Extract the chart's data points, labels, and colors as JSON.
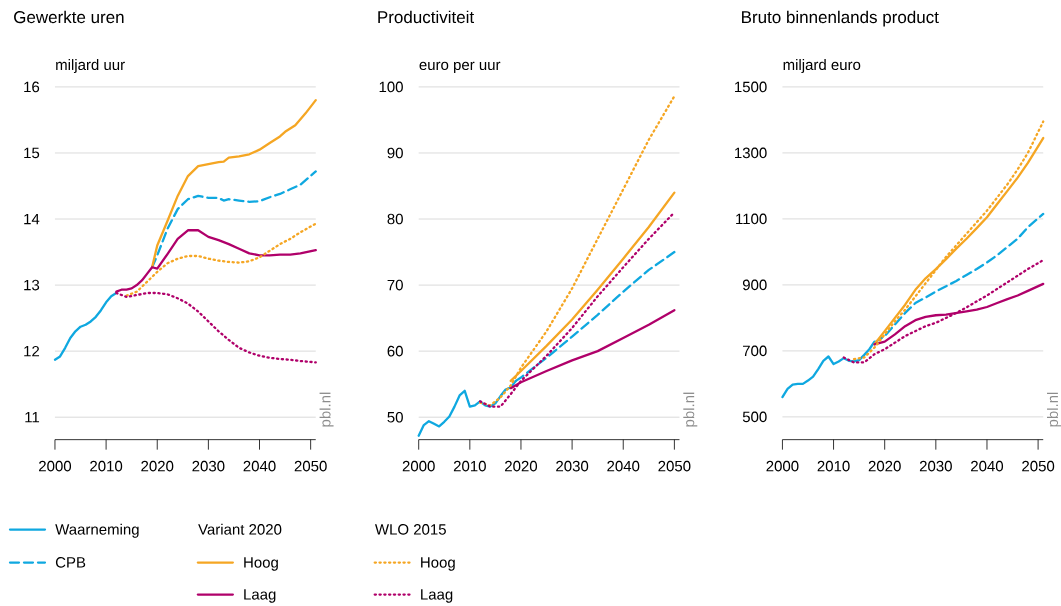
{
  "chart_data": [
    {
      "type": "line",
      "title": "Gewerkte uren",
      "ylabel": "miljard uur",
      "xlim": [
        2000,
        2051
      ],
      "ylim": [
        10.66,
        16
      ],
      "xticks": [
        2000,
        2010,
        2020,
        2030,
        2040,
        2050
      ],
      "yticks": [
        11,
        12,
        13,
        14,
        15,
        16
      ],
      "grid": "y",
      "legend": "bottom",
      "annotations": [
        "pbl.nl",
        "Variant 2020",
        "WLO 2015"
      ],
      "series": [
        {
          "name": "Waarneming",
          "color": "#0fa8e0",
          "line_style": "solid",
          "x": [
            2000,
            2001,
            2002,
            2003,
            2004,
            2005,
            2006,
            2007,
            2008,
            2009,
            2010,
            2011,
            2012
          ],
          "values": [
            11.87,
            11.92,
            12.05,
            12.2,
            12.3,
            12.37,
            12.4,
            12.45,
            12.52,
            12.62,
            12.74,
            12.83,
            12.88
          ]
        },
        {
          "name": "CPB",
          "color": "#0fa8e0",
          "line_style": "dashed",
          "x": [
            2019,
            2020,
            2022,
            2024,
            2026,
            2028,
            2030,
            2032,
            2033,
            2034,
            2036,
            2038,
            2040,
            2042,
            2044,
            2046,
            2048,
            2051
          ],
          "values": [
            13.27,
            13.45,
            13.85,
            14.15,
            14.3,
            14.35,
            14.32,
            14.32,
            14.28,
            14.3,
            14.28,
            14.26,
            14.27,
            14.33,
            14.38,
            14.45,
            14.52,
            14.72
          ]
        },
        {
          "name": "Hoog",
          "color": "#f5a623",
          "line_style": "solid",
          "x": [
            2019,
            2020,
            2022,
            2024,
            2026,
            2028,
            2030,
            2032,
            2033,
            2034,
            2036,
            2038,
            2040,
            2042,
            2044,
            2045,
            2047,
            2049,
            2051
          ],
          "values": [
            13.27,
            13.6,
            13.97,
            14.35,
            14.65,
            14.8,
            14.83,
            14.86,
            14.87,
            14.93,
            14.95,
            14.98,
            15.05,
            15.15,
            15.25,
            15.32,
            15.42,
            15.6,
            15.8
          ]
        },
        {
          "name": "Laag",
          "color": "#b0006a",
          "line_style": "solid",
          "x": [
            2012,
            2013,
            2014,
            2015,
            2016,
            2017,
            2018,
            2019,
            2020,
            2022,
            2024,
            2026,
            2028,
            2030,
            2032,
            2034,
            2036,
            2038,
            2040,
            2042,
            2044,
            2046,
            2048,
            2051
          ],
          "values": [
            12.9,
            12.93,
            12.93,
            12.95,
            13.0,
            13.07,
            13.17,
            13.27,
            13.25,
            13.47,
            13.7,
            13.83,
            13.83,
            13.73,
            13.68,
            13.62,
            13.55,
            13.48,
            13.45,
            13.45,
            13.46,
            13.46,
            13.48,
            13.53
          ]
        },
        {
          "name": "Hoog",
          "color": "#f5a623",
          "line_style": "dotted",
          "x": [
            2014,
            2016,
            2018,
            2020,
            2022,
            2024,
            2026,
            2028,
            2030,
            2032,
            2034,
            2036,
            2038,
            2040,
            2042,
            2044,
            2046,
            2048,
            2051
          ],
          "values": [
            12.84,
            12.9,
            13.05,
            13.2,
            13.33,
            13.4,
            13.44,
            13.44,
            13.4,
            13.37,
            13.35,
            13.34,
            13.36,
            13.42,
            13.52,
            13.62,
            13.7,
            13.8,
            13.93
          ]
        },
        {
          "name": "Laag",
          "color": "#b0006a",
          "line_style": "dotted",
          "x": [
            2012,
            2014,
            2016,
            2018,
            2020,
            2022,
            2024,
            2026,
            2028,
            2030,
            2032,
            2034,
            2036,
            2038,
            2040,
            2042,
            2044,
            2046,
            2048,
            2051
          ],
          "values": [
            12.88,
            12.82,
            12.85,
            12.88,
            12.88,
            12.86,
            12.8,
            12.72,
            12.6,
            12.45,
            12.3,
            12.17,
            12.05,
            11.98,
            11.93,
            11.9,
            11.88,
            11.87,
            11.85,
            11.83
          ]
        }
      ]
    },
    {
      "type": "line",
      "title": "Productiviteit",
      "ylabel": "euro per uur",
      "xlim": [
        2000,
        2051
      ],
      "ylim": [
        46.6,
        100
      ],
      "xticks": [
        2000,
        2010,
        2020,
        2030,
        2040,
        2050
      ],
      "yticks": [
        50,
        60,
        70,
        80,
        90,
        100
      ],
      "grid": "y",
      "annotations": [
        "pbl.nl"
      ],
      "series": [
        {
          "color": "#0fa8e0",
          "line_style": "solid",
          "x": [
            2000,
            2001,
            2002,
            2003,
            2004,
            2005,
            2006,
            2007,
            2008,
            2009,
            2010,
            2011,
            2012,
            2013,
            2014,
            2015,
            2016,
            2017,
            2018,
            2019
          ],
          "values": [
            47.2,
            48.8,
            49.4,
            49.0,
            48.6,
            49.3,
            50.1,
            51.6,
            53.3,
            54.0,
            51.6,
            51.8,
            52.4,
            51.8,
            51.6,
            52.1,
            53.2,
            54.2,
            54.5,
            55.5
          ]
        },
        {
          "color": "#0fa8e0",
          "line_style": "dashed",
          "x": [
            2019,
            2020,
            2025,
            2030,
            2035,
            2040,
            2045,
            2050
          ],
          "values": [
            55.5,
            56.0,
            59.0,
            62.2,
            65.5,
            69.0,
            72.3,
            75.0
          ]
        },
        {
          "color": "#f5a623",
          "line_style": "solid",
          "x": [
            2018,
            2020,
            2025,
            2030,
            2035,
            2040,
            2045,
            2050
          ],
          "values": [
            55.5,
            57.0,
            60.8,
            64.8,
            69.3,
            74.0,
            78.8,
            84.0
          ]
        },
        {
          "color": "#b0006a",
          "line_style": "solid",
          "x": [
            2018,
            2020,
            2025,
            2030,
            2035,
            2040,
            2045,
            2050
          ],
          "values": [
            54.4,
            55.3,
            57.0,
            58.6,
            60.0,
            62.0,
            64.0,
            66.2
          ]
        },
        {
          "color": "#f5a623",
          "line_style": "dotted",
          "x": [
            2012,
            2014,
            2016,
            2018,
            2020,
            2025,
            2030,
            2035,
            2040,
            2045,
            2050
          ],
          "values": [
            52.2,
            51.8,
            53.0,
            54.8,
            57.5,
            63.0,
            69.5,
            77.0,
            84.5,
            92.0,
            98.6
          ]
        },
        {
          "color": "#b0006a",
          "line_style": "dotted",
          "x": [
            2012,
            2014,
            2016,
            2018,
            2020,
            2025,
            2030,
            2035,
            2040,
            2045,
            2050
          ],
          "values": [
            52.4,
            51.6,
            51.6,
            53.5,
            55.5,
            59.3,
            63.5,
            68.3,
            72.7,
            77.0,
            81.0
          ]
        }
      ]
    },
    {
      "type": "line",
      "title": "Bruto binnenlands product",
      "ylabel": "miljard euro",
      "xlim": [
        2000,
        2051
      ],
      "ylim": [
        431,
        1500
      ],
      "xticks": [
        2000,
        2010,
        2020,
        2030,
        2040,
        2050
      ],
      "yticks": [
        500,
        700,
        900,
        1100,
        1300,
        1500
      ],
      "grid": "y",
      "annotations": [
        "pbl.nl"
      ],
      "series": [
        {
          "color": "#0fa8e0",
          "line_style": "solid",
          "x": [
            2000,
            2001,
            2002,
            2003,
            2004,
            2005,
            2006,
            2007,
            2008,
            2009,
            2010,
            2011,
            2012,
            2013,
            2014,
            2015,
            2016,
            2017,
            2018
          ],
          "values": [
            560,
            585,
            598,
            600,
            600,
            610,
            622,
            645,
            670,
            683,
            660,
            668,
            678,
            670,
            668,
            672,
            688,
            705,
            728
          ]
        },
        {
          "color": "#0fa8e0",
          "line_style": "dashed",
          "x": [
            2018,
            2020,
            2022,
            2024,
            2026,
            2028,
            2030,
            2032,
            2034,
            2036,
            2038,
            2040,
            2042,
            2044,
            2046,
            2048,
            2051
          ],
          "values": [
            725,
            745,
            780,
            815,
            845,
            862,
            880,
            896,
            912,
            930,
            948,
            968,
            990,
            1015,
            1040,
            1075,
            1115
          ]
        },
        {
          "color": "#f5a623",
          "line_style": "solid",
          "x": [
            2018,
            2020,
            2022,
            2024,
            2026,
            2028,
            2030,
            2032,
            2034,
            2036,
            2038,
            2040,
            2042,
            2044,
            2046,
            2048,
            2051
          ],
          "values": [
            720,
            760,
            800,
            840,
            885,
            920,
            948,
            978,
            1010,
            1040,
            1072,
            1105,
            1145,
            1185,
            1225,
            1270,
            1345
          ]
        },
        {
          "color": "#b0006a",
          "line_style": "solid",
          "x": [
            2018,
            2020,
            2022,
            2024,
            2026,
            2028,
            2030,
            2032,
            2034,
            2036,
            2038,
            2040,
            2042,
            2044,
            2046,
            2048,
            2051
          ],
          "values": [
            720,
            728,
            750,
            775,
            793,
            803,
            808,
            810,
            815,
            820,
            825,
            833,
            845,
            857,
            868,
            882,
            903
          ]
        },
        {
          "color": "#f5a623",
          "line_style": "dotted",
          "x": [
            2014,
            2016,
            2018,
            2020,
            2022,
            2024,
            2026,
            2028,
            2030,
            2032,
            2034,
            2036,
            2038,
            2040,
            2042,
            2044,
            2046,
            2048,
            2051
          ],
          "values": [
            675,
            680,
            710,
            750,
            790,
            825,
            865,
            905,
            945,
            985,
            1020,
            1055,
            1090,
            1125,
            1165,
            1205,
            1250,
            1300,
            1395
          ]
        },
        {
          "color": "#b0006a",
          "line_style": "dotted",
          "x": [
            2012,
            2014,
            2016,
            2018,
            2020,
            2022,
            2024,
            2026,
            2028,
            2030,
            2032,
            2034,
            2036,
            2038,
            2040,
            2042,
            2044,
            2046,
            2048,
            2051
          ],
          "values": [
            680,
            665,
            665,
            690,
            705,
            725,
            745,
            760,
            775,
            785,
            800,
            815,
            832,
            850,
            868,
            888,
            908,
            928,
            948,
            975
          ]
        }
      ]
    }
  ]
}
